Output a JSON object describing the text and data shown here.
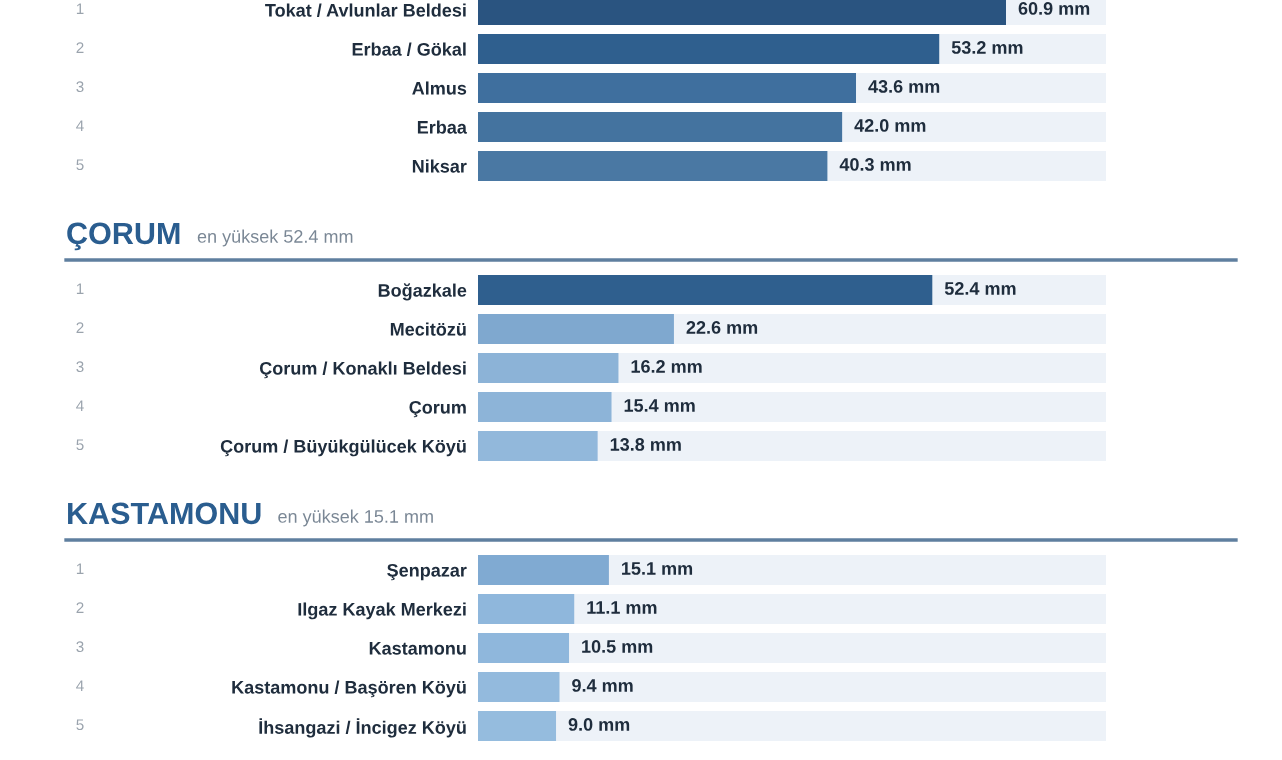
{
  "chart_data": [
    {
      "type": "bar",
      "orientation": "horizontal",
      "data_labels": true,
      "tick_labels": "y",
      "categories": [
        "Tokat / Avlunlar Beldesi",
        "Erbaa / Gökal",
        "Almus",
        "Erbaa",
        "Niksar"
      ],
      "values": [
        60.9,
        53.2,
        43.6,
        42.0,
        40.3
      ],
      "colors": [
        "#2a5480",
        "#2f5f8e",
        "#3f6f9e",
        "#44739f",
        "#4a78a3"
      ],
      "value_labels": [
        "60.9 mm",
        "53.2 mm",
        "43.6 mm",
        "42.0 mm",
        "40.3 mm"
      ],
      "annotations": [
        "1",
        "2",
        "3",
        "4",
        "5"
      ]
    },
    {
      "type": "bar",
      "orientation": "horizontal",
      "data_labels": true,
      "tick_labels": "y",
      "title": "ÇORUM",
      "subtitle": "en yüksek 52.4 mm",
      "categories": [
        "Boğazkale",
        "Mecitözü",
        "Çorum / Konaklı Beldesi",
        "Çorum",
        "Çorum / Büyükgülücek Köyü"
      ],
      "values": [
        52.4,
        22.6,
        16.2,
        15.4,
        13.8
      ],
      "colors": [
        "#2f5f8e",
        "#7fa8cf",
        "#8cb3d7",
        "#8db4d8",
        "#92b8db"
      ],
      "value_labels": [
        "52.4 mm",
        "22.6 mm",
        "16.2 mm",
        "15.4 mm",
        "13.8 mm"
      ],
      "annotations": [
        "1",
        "2",
        "3",
        "4",
        "5"
      ]
    },
    {
      "type": "bar",
      "orientation": "horizontal",
      "data_labels": true,
      "tick_labels": "y",
      "title": "KASTAMONU",
      "subtitle": "en yüksek 15.1 mm",
      "categories": [
        "Şenpazar",
        "Ilgaz Kayak Merkezi",
        "Kastamonu",
        "Kastamonu / Başören Köyü",
        "İhsangazi / İncigez Köyü"
      ],
      "values": [
        15.1,
        11.1,
        10.5,
        9.4,
        9.0
      ],
      "colors": [
        "#80aad2",
        "#8fb7dc",
        "#8fb7dc",
        "#93badd",
        "#95bcde"
      ],
      "value_labels": [
        "15.1 mm",
        "11.1 mm",
        "10.5 mm",
        "9.4 mm",
        "9.0 mm"
      ],
      "annotations": [
        "1",
        "2",
        "3",
        "4",
        "5"
      ]
    }
  ]
}
